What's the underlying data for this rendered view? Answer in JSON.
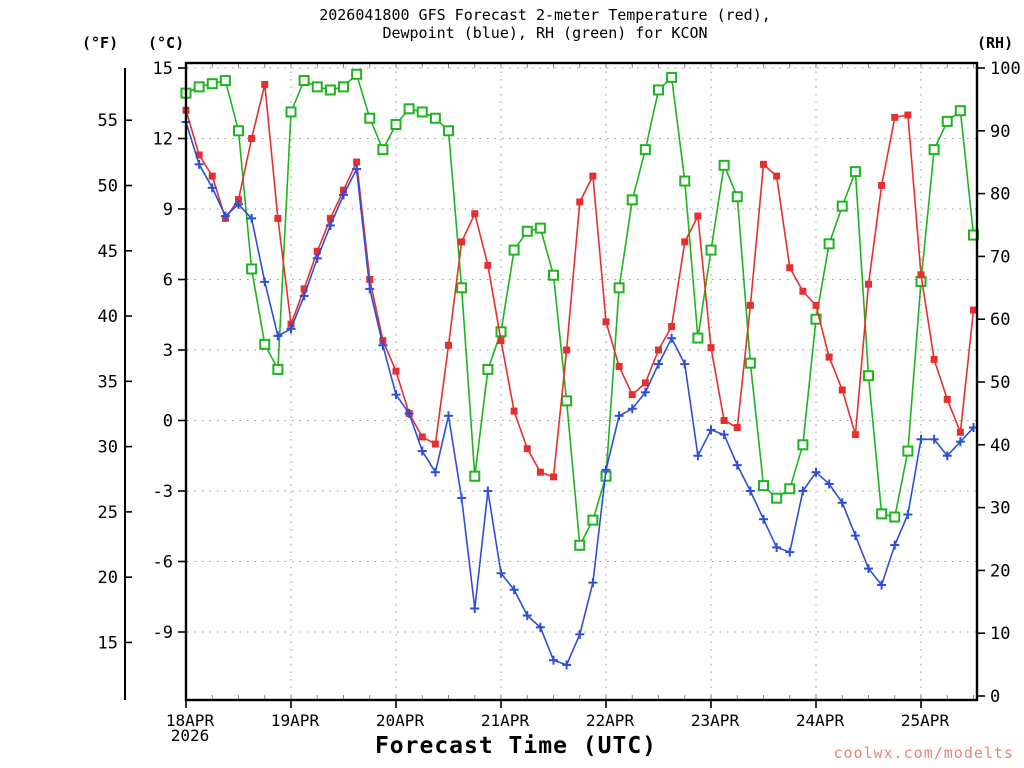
{
  "title": {
    "line1": "2026041800 GFS Forecast 2-meter Temperature (red),",
    "line2": "Dewpoint (blue), RH (green) for KCON"
  },
  "axes": {
    "fahrenheit_label": "(°F)",
    "celsius_label": "(°C)",
    "rh_label": "(RH)",
    "f_ticks": [
      55,
      50,
      45,
      40,
      35,
      30,
      25,
      20,
      15
    ],
    "c_ticks": [
      15,
      12,
      9,
      6,
      3,
      0,
      -3,
      -6,
      -9
    ],
    "rh_ticks": [
      100,
      90,
      80,
      70,
      60,
      50,
      40,
      30,
      20,
      10,
      0
    ]
  },
  "x_axis": {
    "title": "Forecast Time (UTC)",
    "year": "2026",
    "day_labels": [
      "18APR",
      "19APR",
      "20APR",
      "21APR",
      "22APR",
      "23APR",
      "24APR",
      "25APR"
    ]
  },
  "watermark": "coolwx.com/modelts",
  "chart_data": {
    "type": "line",
    "title": "2026041800 GFS Forecast 2-meter Temperature (red), Dewpoint (blue), RH (green) for KCON",
    "x_unit": "forecast hour (UTC), 3-hourly from 18APR2026 00Z",
    "x_hours": [
      0,
      3,
      6,
      9,
      12,
      15,
      18,
      21,
      24,
      27,
      30,
      33,
      36,
      39,
      42,
      45,
      48,
      51,
      54,
      57,
      60,
      63,
      66,
      69,
      72,
      75,
      78,
      81,
      84,
      87,
      90,
      93,
      96,
      99,
      102,
      105,
      108,
      111,
      114,
      117,
      120,
      123,
      126,
      129,
      132,
      135,
      138,
      141,
      144,
      147,
      150,
      153,
      156,
      159,
      162,
      165,
      168,
      171,
      174,
      177,
      180
    ],
    "x_range_hours": [
      0,
      181
    ],
    "ylim_c": [
      -11.9,
      15.2
    ],
    "ylim_rh": [
      0,
      101
    ],
    "grid": "dotted horizontal at 3C steps, dotted vertical at day marks",
    "legend_position": "in title",
    "series": [
      {
        "name": "2-meter Temperature",
        "unit": "degC",
        "color": "#e53030",
        "marker": "filled-square",
        "values": [
          13.2,
          11.3,
          10.4,
          8.6,
          9.4,
          12.0,
          14.3,
          8.6,
          4.1,
          5.6,
          7.2,
          8.6,
          9.8,
          11.0,
          6.0,
          3.4,
          2.1,
          0.3,
          -0.7,
          -1.0,
          3.2,
          7.6,
          8.8,
          6.6,
          3.4,
          0.4,
          -1.2,
          -2.2,
          -2.4,
          3.0,
          9.3,
          10.4,
          4.2,
          2.3,
          1.1,
          1.6,
          3.0,
          4.0,
          7.6,
          8.7,
          3.1,
          0.0,
          -0.3,
          4.9,
          10.9,
          10.4,
          6.5,
          5.5,
          4.9,
          2.7,
          1.3,
          -0.6,
          5.8,
          10.0,
          12.9,
          13.0,
          6.2,
          2.6,
          0.9,
          -0.5,
          4.7
        ]
      },
      {
        "name": "Dewpoint",
        "unit": "degC",
        "color": "#2d4fd8",
        "marker": "plus",
        "values": [
          12.7,
          10.9,
          9.9,
          8.7,
          9.2,
          8.6,
          5.9,
          3.6,
          3.9,
          5.3,
          6.9,
          8.3,
          9.6,
          10.7,
          5.6,
          3.2,
          1.1,
          0.3,
          -1.3,
          -2.2,
          0.2,
          -3.3,
          -8.0,
          -3.0,
          -6.5,
          -7.2,
          -8.3,
          -8.8,
          -10.2,
          -10.4,
          -9.1,
          -6.9,
          -2.1,
          0.2,
          0.5,
          1.2,
          2.4,
          3.5,
          2.4,
          -1.5,
          -0.4,
          -0.6,
          -1.9,
          -3.0,
          -4.2,
          -5.4,
          -5.6,
          -3.0,
          -2.2,
          -2.7,
          -3.5,
          -4.9,
          -6.3,
          -7.0,
          -5.3,
          -4.0,
          -0.8,
          -0.8,
          -1.5,
          -0.9,
          -0.3
        ]
      },
      {
        "name": "RH",
        "unit": "%",
        "color": "#1eb41e",
        "marker": "open-square",
        "values": [
          96,
          97,
          97.5,
          98,
          90,
          68,
          56,
          52,
          93,
          98,
          97,
          96.5,
          97,
          99,
          92,
          87,
          91,
          93.5,
          93,
          92,
          90,
          65,
          35,
          52,
          58,
          71,
          74,
          74.5,
          67,
          47,
          24,
          28,
          35,
          65,
          79,
          87,
          96.5,
          98.5,
          82,
          57,
          71,
          84.5,
          79.5,
          53,
          33.5,
          31.5,
          33,
          40,
          60,
          72,
          78,
          83.5,
          51,
          29,
          28.5,
          39,
          66,
          87,
          91.5,
          93.2,
          73.4
        ]
      }
    ]
  }
}
